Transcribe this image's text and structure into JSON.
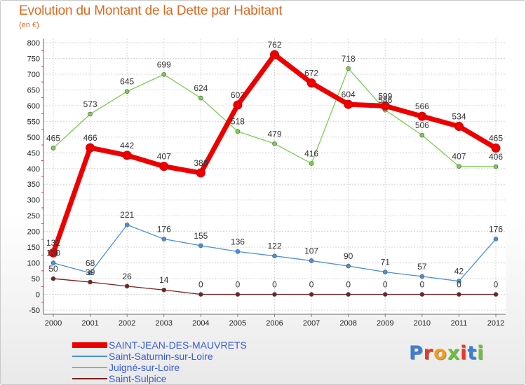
{
  "header": {
    "title": "Evolution du Montant de la Dette par Habitant",
    "subtitle": "(en €)"
  },
  "logo": {
    "text": "Proxiti",
    "colors": [
      "#3a7fd5",
      "#e33a2a",
      "#f39c1f",
      "#6cbf3a",
      "#e33a2a",
      "#3a7fd5",
      "#6cbf3a"
    ]
  },
  "chart_data": {
    "type": "line",
    "title": "Evolution du Montant de la Dette par Habitant",
    "ylabel": "(en €)",
    "xlabel": "",
    "x": [
      "2000",
      "2001",
      "2002",
      "2003",
      "2004",
      "2005",
      "2006",
      "2007",
      "2008",
      "2009",
      "2010",
      "2011",
      "2012"
    ],
    "ylim": [
      -50,
      800
    ],
    "yticks": [
      -50,
      0,
      50,
      100,
      150,
      200,
      250,
      300,
      350,
      400,
      450,
      500,
      550,
      600,
      650,
      700,
      750,
      800
    ],
    "grid": true,
    "legend": "bottom-left",
    "series": [
      {
        "name": "SAINT-JEAN-DES-MAUVRETS",
        "color": "#ee0000",
        "values": [
          132,
          466,
          442,
          407,
          386,
          602,
          762,
          672,
          604,
          599,
          566,
          534,
          465
        ],
        "labels": [
          "132",
          "466",
          "442",
          "407",
          "386",
          "602",
          "762",
          "672",
          "604",
          "599",
          "566",
          "534",
          "465"
        ]
      },
      {
        "name": "Saint-Saturnin-sur-Loire",
        "color": "#4a90d9",
        "values": [
          100,
          68,
          221,
          176,
          155,
          136,
          122,
          107,
          90,
          71,
          57,
          42,
          176
        ],
        "labels": [
          "100",
          "68",
          "221",
          "176",
          "155",
          "136",
          "122",
          "107",
          "90",
          "71",
          "57",
          "42",
          "176"
        ]
      },
      {
        "name": "Juigné-sur-Loire",
        "color": "#7ccc52",
        "values": [
          465,
          573,
          645,
          699,
          624,
          518,
          479,
          416,
          718,
          586,
          506,
          407,
          406
        ],
        "labels": [
          "465",
          "573",
          "645",
          "699",
          "624",
          "518",
          "479",
          "416",
          "718",
          "586",
          "506",
          "407",
          "406"
        ]
      },
      {
        "name": "Saint-Sulpice",
        "color": "#7a2020",
        "values": [
          50,
          39,
          26,
          14,
          0,
          0,
          0,
          0,
          0,
          0,
          0,
          0,
          0
        ],
        "labels": [
          "50",
          "39",
          "26",
          "14",
          "0",
          "0",
          "0",
          "0",
          "0",
          "0",
          "0",
          "0",
          "0"
        ]
      }
    ]
  }
}
